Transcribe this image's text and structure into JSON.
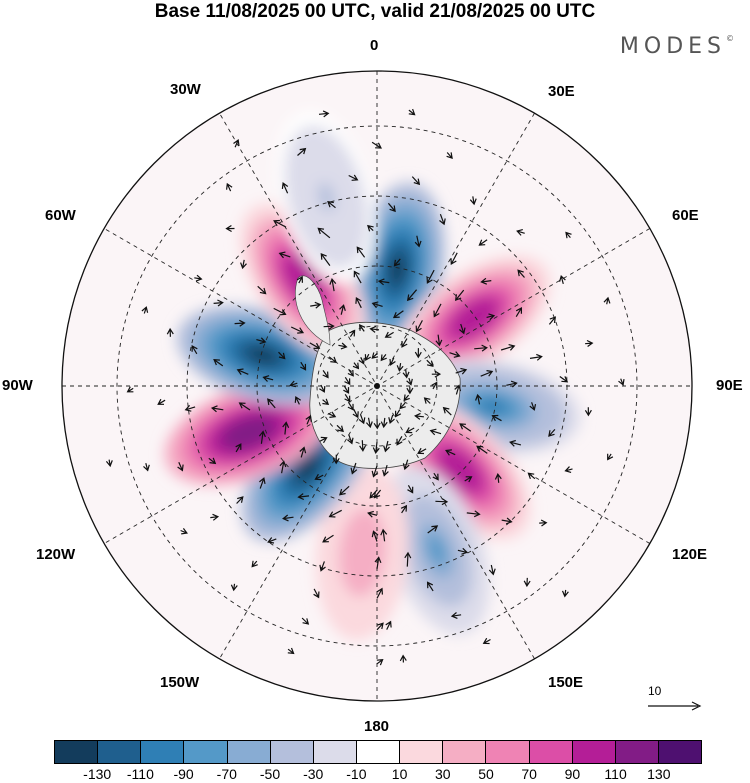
{
  "title": "Base 11/08/2025 00 UTC, valid 21/08/2025 00 UTC",
  "brand": "MODES",
  "brand_mark": "©",
  "map": {
    "projection": "south-polar-stereographic",
    "longitude_labels": {
      "lon_0": "0",
      "lon_30e": "30E",
      "lon_60e": "60E",
      "lon_90e": "90E",
      "lon_120e": "120E",
      "lon_150e": "150E",
      "lon_180": "180",
      "lon_150w": "150W",
      "lon_120w": "120W",
      "lon_90w": "90W",
      "lon_60w": "60W",
      "lon_30w": "30W"
    },
    "reference_vector": "10",
    "anomaly_centers": [
      {
        "lon": 10,
        "lat": -55,
        "sign": "negative",
        "peak": -130
      },
      {
        "lon": 55,
        "lat": -55,
        "sign": "positive",
        "peak": 110
      },
      {
        "lon": 100,
        "lat": -55,
        "sign": "negative",
        "peak": -90
      },
      {
        "lon": 135,
        "lat": -55,
        "sign": "positive",
        "peak": 110
      },
      {
        "lon": 160,
        "lat": -40,
        "sign": "negative",
        "peak": -70
      },
      {
        "lon": -175,
        "lat": -42,
        "sign": "positive",
        "peak": 50
      },
      {
        "lon": -140,
        "lat": -58,
        "sign": "negative",
        "peak": -130
      },
      {
        "lon": -110,
        "lat": -50,
        "sign": "positive",
        "peak": 130
      },
      {
        "lon": -75,
        "lat": -55,
        "sign": "negative",
        "peak": -130
      },
      {
        "lon": -35,
        "lat": -52,
        "sign": "positive",
        "peak": 110
      },
      {
        "lon": -15,
        "lat": -35,
        "sign": "negative",
        "peak": -30
      }
    ]
  },
  "colorbar": {
    "ticks": [
      "-130",
      "-110",
      "-90",
      "-70",
      "-50",
      "-30",
      "-10",
      "10",
      "30",
      "50",
      "70",
      "90",
      "110",
      "130"
    ],
    "colors": [
      "#133c5c",
      "#1f5f8e",
      "#2f7fb5",
      "#5499c8",
      "#88acd3",
      "#b4bfdc",
      "#dcdcea",
      "#ffffff",
      "#fbd9de",
      "#f5aec4",
      "#ef83b4",
      "#dc4ea7",
      "#b41e97",
      "#821c86",
      "#4e1070"
    ]
  }
}
